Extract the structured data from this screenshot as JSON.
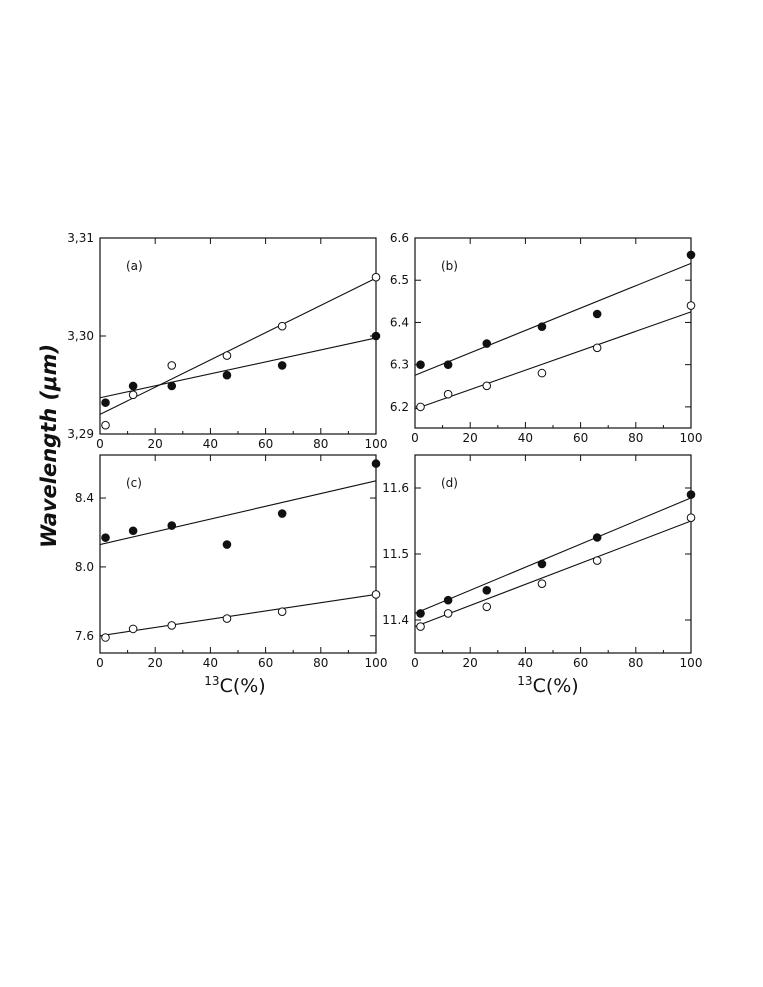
{
  "figure": {
    "ylabel": "Wavelength (μm)",
    "xlabel_left": {
      "sup": "13",
      "main": "C(%)"
    },
    "xlabel_right": {
      "sup": "13",
      "main": "C(%)"
    }
  },
  "chart_data": [
    {
      "type": "scatter",
      "panel": "(a)",
      "x_ticks": [
        "0",
        "20",
        "40",
        "60",
        "80",
        "100"
      ],
      "y_ticks": [
        "3,29",
        "3,30",
        "3,31"
      ],
      "xlim": [
        0,
        100
      ],
      "ylim": [
        3.29,
        3.31
      ],
      "grid": false,
      "series": [
        {
          "marker": "filled",
          "x": [
            2,
            12,
            26,
            46,
            66,
            100
          ],
          "y": [
            3.2932,
            3.2949,
            3.2949,
            3.296,
            3.297,
            3.3
          ],
          "fit": [
            [
              0,
              3.2937
            ],
            [
              100,
              3.2998
            ]
          ]
        },
        {
          "marker": "open",
          "x": [
            2,
            12,
            26,
            46,
            66,
            100
          ],
          "y": [
            3.2909,
            3.294,
            3.297,
            3.298,
            3.301,
            3.306
          ],
          "fit": [
            [
              0,
              3.292
            ],
            [
              100,
              3.3059
            ]
          ]
        }
      ]
    },
    {
      "type": "scatter",
      "panel": "(b)",
      "x_ticks": [
        "0",
        "20",
        "40",
        "60",
        "80",
        "100"
      ],
      "y_ticks": [
        "6.2",
        "6.3",
        "6.4",
        "6.5",
        "6.6"
      ],
      "xlim": [
        0,
        100
      ],
      "ylim": [
        6.15,
        6.6
      ],
      "grid": false,
      "series": [
        {
          "marker": "filled",
          "x": [
            2,
            12,
            26,
            46,
            66,
            100
          ],
          "y": [
            6.3,
            6.3,
            6.35,
            6.39,
            6.42,
            6.56
          ],
          "fit": [
            [
              0,
              6.275
            ],
            [
              100,
              6.54
            ]
          ]
        },
        {
          "marker": "open",
          "x": [
            2,
            12,
            26,
            46,
            66,
            100
          ],
          "y": [
            6.2,
            6.23,
            6.25,
            6.28,
            6.34,
            6.44
          ],
          "fit": [
            [
              0,
              6.195
            ],
            [
              100,
              6.425
            ]
          ]
        }
      ]
    },
    {
      "type": "scatter",
      "panel": "(c)",
      "x_ticks": [
        "0",
        "20",
        "40",
        "60",
        "80",
        "100"
      ],
      "y_ticks": [
        "7.6",
        "8.0",
        "8.4"
      ],
      "xlim": [
        0,
        100
      ],
      "ylim": [
        7.5,
        8.65
      ],
      "grid": false,
      "series": [
        {
          "marker": "filled",
          "x": [
            2,
            12,
            26,
            46,
            66,
            100
          ],
          "y": [
            8.17,
            8.21,
            8.24,
            8.13,
            8.31,
            8.6
          ],
          "fit": [
            [
              0,
              8.13
            ],
            [
              100,
              8.5
            ]
          ]
        },
        {
          "marker": "open",
          "x": [
            2,
            12,
            26,
            46,
            66,
            100
          ],
          "y": [
            7.59,
            7.64,
            7.66,
            7.7,
            7.74,
            7.84
          ],
          "fit": [
            [
              0,
              7.6
            ],
            [
              100,
              7.84
            ]
          ]
        }
      ]
    },
    {
      "type": "scatter",
      "panel": "(d)",
      "x_ticks": [
        "0",
        "20",
        "40",
        "60",
        "80",
        "100"
      ],
      "y_ticks": [
        "11.4",
        "11.5",
        "11.6"
      ],
      "xlim": [
        0,
        100
      ],
      "ylim": [
        11.35,
        11.65
      ],
      "grid": false,
      "series": [
        {
          "marker": "filled",
          "x": [
            2,
            12,
            26,
            46,
            66,
            100
          ],
          "y": [
            11.41,
            11.43,
            11.445,
            11.485,
            11.525,
            11.59
          ],
          "fit": [
            [
              0,
              11.41
            ],
            [
              100,
              11.585
            ]
          ]
        },
        {
          "marker": "open",
          "x": [
            2,
            12,
            26,
            46,
            66,
            100
          ],
          "y": [
            11.39,
            11.41,
            11.42,
            11.455,
            11.49,
            11.555
          ],
          "fit": [
            [
              0,
              11.39
            ],
            [
              100,
              11.55
            ]
          ]
        }
      ]
    }
  ]
}
